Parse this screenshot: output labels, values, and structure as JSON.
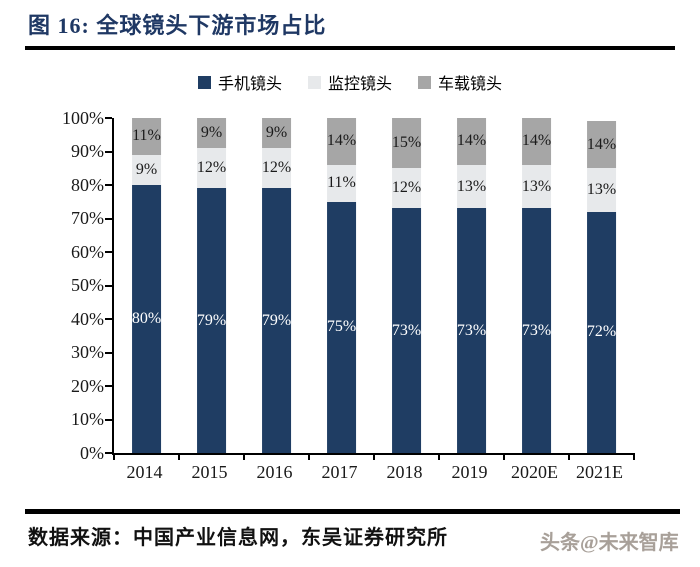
{
  "header": {
    "title": "图 16:  全球镜头下游市场占比"
  },
  "colors": {
    "title_navy": "#1F3864",
    "rule_black": "#000000",
    "bar_phone_blue": "#1F3D63",
    "bar_surveillance_lightgray": "#E7E9EB",
    "bar_car_gray": "#A6A6A6",
    "watermark_gray": "#a8a099"
  },
  "chart_data": {
    "type": "bar",
    "stacked": true,
    "title": "全球镜头下游市场占比",
    "categories": [
      "2014",
      "2015",
      "2016",
      "2017",
      "2018",
      "2019",
      "2020E",
      "2021E"
    ],
    "series": [
      {
        "name": "手机镜头",
        "color": "#1F3D63",
        "label_color": "#FFFFFF",
        "values": [
          80,
          79,
          79,
          75,
          73,
          73,
          73,
          72
        ]
      },
      {
        "name": "监控镜头",
        "color": "#E7E9EB",
        "label_color": "#1a1a1a",
        "values": [
          9,
          12,
          12,
          11,
          12,
          13,
          13,
          13
        ]
      },
      {
        "name": "车载镜头",
        "color": "#A6A6A6",
        "label_color": "#1a1a1a",
        "values": [
          11,
          9,
          9,
          14,
          15,
          14,
          14,
          14
        ]
      }
    ],
    "value_suffix": "%",
    "ylim": [
      0,
      100
    ],
    "ytick_step": 10,
    "ytick_labels": [
      "0%",
      "10%",
      "20%",
      "30%",
      "40%",
      "50%",
      "60%",
      "70%",
      "80%",
      "90%",
      "100%"
    ],
    "legend_position": "top",
    "grid": false
  },
  "footer": {
    "source": "数据来源：中国产业信息网，东吴证券研究所",
    "watermark": "头条@未来智库"
  }
}
